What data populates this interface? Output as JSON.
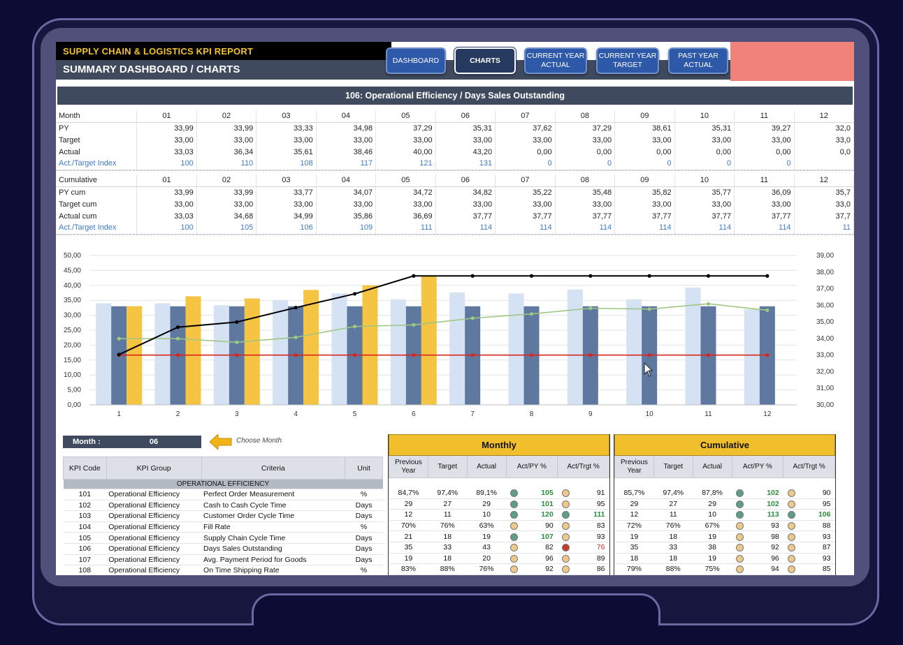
{
  "header": {
    "report_title": "SUPPLY CHAIN & LOGISTICS KPI REPORT",
    "subtitle": "SUMMARY DASHBOARD / CHARTS",
    "nav": [
      {
        "label": "DASHBOARD",
        "active": false
      },
      {
        "label": "CHARTS",
        "active": true
      },
      {
        "label": "CURRENT YEAR ACTUAL",
        "active": false
      },
      {
        "label": "CURRENT YEAR TARGET",
        "active": false
      },
      {
        "label": "PAST YEAR ACTUAL",
        "active": false
      }
    ]
  },
  "kpi_title": "106: Operational Efficiency / Days Sales Outstanding",
  "monthly": {
    "header": "Month",
    "months": [
      "01",
      "02",
      "03",
      "04",
      "05",
      "06",
      "07",
      "08",
      "09",
      "10",
      "11",
      "12"
    ],
    "rows": [
      {
        "label": "PY",
        "values": [
          "33,99",
          "33,99",
          "33,33",
          "34,98",
          "37,29",
          "35,31",
          "37,62",
          "37,29",
          "38,61",
          "35,31",
          "39,27",
          "32,0"
        ]
      },
      {
        "label": "Target",
        "values": [
          "33,00",
          "33,00",
          "33,00",
          "33,00",
          "33,00",
          "33,00",
          "33,00",
          "33,00",
          "33,00",
          "33,00",
          "33,00",
          "33,0"
        ]
      },
      {
        "label": "Actual",
        "values": [
          "33,03",
          "36,34",
          "35,61",
          "38,46",
          "40,00",
          "43,20",
          "0,00",
          "0,00",
          "0,00",
          "0,00",
          "0,00",
          "0,0"
        ]
      },
      {
        "label": "Act./Target Index",
        "values": [
          "100",
          "110",
          "108",
          "117",
          "121",
          "131",
          "0",
          "0",
          "0",
          "0",
          "0",
          ""
        ]
      }
    ]
  },
  "cumulative": {
    "header": "Cumulative",
    "months": [
      "01",
      "02",
      "03",
      "04",
      "05",
      "06",
      "07",
      "08",
      "09",
      "10",
      "11",
      "12"
    ],
    "rows": [
      {
        "label": "PY cum",
        "values": [
          "33,99",
          "33,99",
          "33,77",
          "34,07",
          "34,72",
          "34,82",
          "35,22",
          "35,48",
          "35,82",
          "35,77",
          "36,09",
          "35,7"
        ]
      },
      {
        "label": "Target cum",
        "values": [
          "33,00",
          "33,00",
          "33,00",
          "33,00",
          "33,00",
          "33,00",
          "33,00",
          "33,00",
          "33,00",
          "33,00",
          "33,00",
          "33,0"
        ]
      },
      {
        "label": "Actual cum",
        "values": [
          "33,03",
          "34,68",
          "34,99",
          "35,86",
          "36,69",
          "37,77",
          "37,77",
          "37,77",
          "37,77",
          "37,77",
          "37,77",
          "37,7"
        ]
      },
      {
        "label": "Act./Target Index",
        "values": [
          "100",
          "105",
          "106",
          "109",
          "111",
          "114",
          "114",
          "114",
          "114",
          "114",
          "114",
          "11"
        ]
      }
    ]
  },
  "chart_data": {
    "type": "bar",
    "categories": [
      "1",
      "2",
      "3",
      "4",
      "5",
      "6",
      "7",
      "8",
      "9",
      "10",
      "11",
      "12"
    ],
    "y_ticks": [
      "0,00",
      "5,00",
      "10,00",
      "15,00",
      "20,00",
      "25,00",
      "30,00",
      "35,00",
      "40,00",
      "45,00",
      "50,00"
    ],
    "y2_ticks": [
      "30,00",
      "31,00",
      "32,00",
      "33,00",
      "34,00",
      "35,00",
      "36,00",
      "37,00",
      "38,00",
      "39,00"
    ],
    "ylim": [
      0,
      50
    ],
    "y2lim": [
      30,
      39
    ],
    "series": [
      {
        "type": "bar",
        "axis": "left",
        "color": "#d4e2f3",
        "values": [
          33.99,
          33.99,
          33.33,
          34.98,
          37.29,
          35.31,
          37.62,
          37.29,
          38.61,
          35.31,
          39.27,
          32.0
        ]
      },
      {
        "type": "bar",
        "axis": "left",
        "color": "#5e789f",
        "values": [
          33.0,
          33.0,
          33.0,
          33.0,
          33.0,
          33.0,
          33.0,
          33.0,
          33.0,
          33.0,
          33.0,
          33.0
        ]
      },
      {
        "type": "bar",
        "axis": "left",
        "color": "#f5c443",
        "values": [
          33.03,
          36.34,
          35.61,
          38.46,
          40.0,
          43.2,
          0,
          0,
          0,
          0,
          0,
          0
        ]
      },
      {
        "type": "line",
        "axis": "right",
        "color": "#9dc783",
        "values": [
          33.99,
          33.99,
          33.77,
          34.07,
          34.72,
          34.82,
          35.22,
          35.48,
          35.82,
          35.77,
          36.09,
          35.7
        ]
      },
      {
        "type": "line",
        "axis": "right",
        "color": "#d9261c",
        "values": [
          33.0,
          33.0,
          33.0,
          33.0,
          33.0,
          33.0,
          33.0,
          33.0,
          33.0,
          33.0,
          33.0,
          33.0
        ]
      },
      {
        "type": "line",
        "axis": "right",
        "color": "#000000",
        "values": [
          33.03,
          34.68,
          34.99,
          35.86,
          36.69,
          37.77,
          37.77,
          37.77,
          37.77,
          37.77,
          37.77,
          37.77
        ]
      }
    ],
    "grid": true,
    "legend": "none"
  },
  "month_selector": {
    "label": "Month :",
    "value": "06",
    "hint": "Choose Month"
  },
  "kpi_table": {
    "headers": [
      "KPI Code",
      "KPI Group",
      "Criteria",
      "Unit"
    ],
    "group_label": "OPERATIONAL EFFICIENCY",
    "rows": [
      {
        "code": "101",
        "group": "Operational Efficiency",
        "criteria": "Perfect Order Measurement",
        "unit": "%"
      },
      {
        "code": "102",
        "group": "Operational Efficiency",
        "criteria": "Cash to Cash Cycle Time",
        "unit": "Days"
      },
      {
        "code": "103",
        "group": "Operational Efficiency",
        "criteria": "Customer Order Cycle Time",
        "unit": "Days"
      },
      {
        "code": "104",
        "group": "Operational Efficiency",
        "criteria": "Fill Rate",
        "unit": "%"
      },
      {
        "code": "105",
        "group": "Operational Efficiency",
        "criteria": "Supply Chain Cycle Time",
        "unit": "Days"
      },
      {
        "code": "106",
        "group": "Operational Efficiency",
        "criteria": "Days Sales Outstanding",
        "unit": "Days"
      },
      {
        "code": "107",
        "group": "Operational Efficiency",
        "criteria": "Avg. Payment Period for Goods",
        "unit": "Days"
      },
      {
        "code": "108",
        "group": "Operational Efficiency",
        "criteria": "On Time Shipping Rate",
        "unit": "%"
      }
    ]
  },
  "perf_headers": {
    "prev": "Previous Year",
    "target": "Target",
    "actual": "Actual",
    "act_py": "Act/PY %",
    "act_trgt": "Act/Trgt %"
  },
  "monthly_perf": {
    "title": "Monthly",
    "rows": [
      {
        "prev": "84,7%",
        "target": "97,4%",
        "actual": "89,1%",
        "py": "105",
        "py_s": "g",
        "tg": "91",
        "tg_s": "y"
      },
      {
        "prev": "29",
        "target": "27",
        "actual": "29",
        "py": "101",
        "py_s": "g",
        "tg": "95",
        "tg_s": "y"
      },
      {
        "prev": "12",
        "target": "11",
        "actual": "10",
        "py": "120",
        "py_s": "g",
        "tg": "111",
        "tg_s": "g"
      },
      {
        "prev": "70%",
        "target": "76%",
        "actual": "63%",
        "py": "90",
        "py_s": "y",
        "tg": "83",
        "tg_s": "y"
      },
      {
        "prev": "21",
        "target": "18",
        "actual": "19",
        "py": "107",
        "py_s": "g",
        "tg": "93",
        "tg_s": "y"
      },
      {
        "prev": "35",
        "target": "33",
        "actual": "43",
        "py": "82",
        "py_s": "y",
        "tg": "76",
        "tg_s": "r"
      },
      {
        "prev": "19",
        "target": "18",
        "actual": "20",
        "py": "96",
        "py_s": "y",
        "tg": "89",
        "tg_s": "y"
      },
      {
        "prev": "83%",
        "target": "88%",
        "actual": "76%",
        "py": "92",
        "py_s": "y",
        "tg": "86",
        "tg_s": "y"
      }
    ]
  },
  "cumulative_perf": {
    "title": "Cumulative",
    "rows": [
      {
        "prev": "85,7%",
        "target": "97,4%",
        "actual": "87,8%",
        "py": "102",
        "py_s": "g",
        "tg": "90",
        "tg_s": "y"
      },
      {
        "prev": "29",
        "target": "27",
        "actual": "29",
        "py": "102",
        "py_s": "g",
        "tg": "95",
        "tg_s": "y"
      },
      {
        "prev": "12",
        "target": "11",
        "actual": "10",
        "py": "113",
        "py_s": "g",
        "tg": "106",
        "tg_s": "g"
      },
      {
        "prev": "72%",
        "target": "76%",
        "actual": "67%",
        "py": "93",
        "py_s": "y",
        "tg": "88",
        "tg_s": "y"
      },
      {
        "prev": "19",
        "target": "18",
        "actual": "19",
        "py": "98",
        "py_s": "y",
        "tg": "93",
        "tg_s": "y"
      },
      {
        "prev": "35",
        "target": "33",
        "actual": "38",
        "py": "92",
        "py_s": "y",
        "tg": "87",
        "tg_s": "y"
      },
      {
        "prev": "18",
        "target": "18",
        "actual": "19",
        "py": "96",
        "py_s": "y",
        "tg": "93",
        "tg_s": "y"
      },
      {
        "prev": "79%",
        "target": "88%",
        "actual": "75%",
        "py": "94",
        "py_s": "y",
        "tg": "85",
        "tg_s": "y"
      }
    ]
  }
}
